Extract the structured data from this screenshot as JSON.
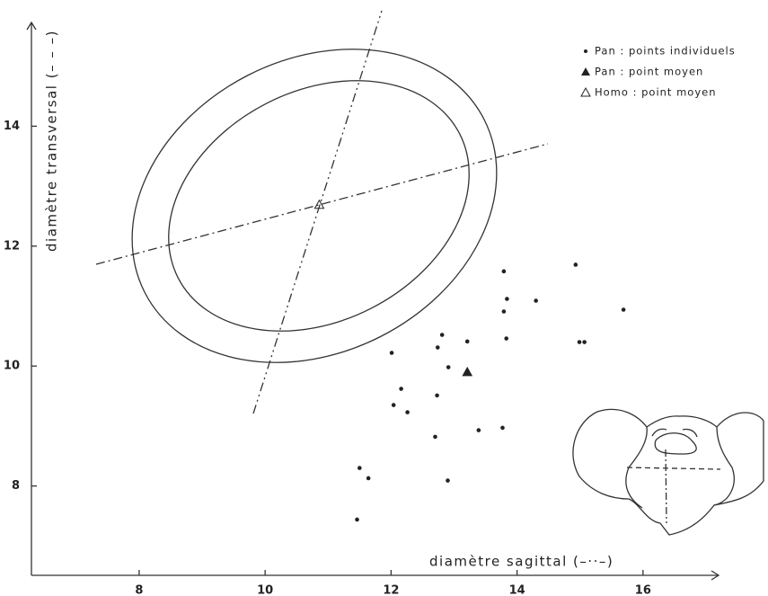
{
  "chart_data": {
    "type": "scatter",
    "x_label": "diamètre sagittal (–··–)",
    "y_label": "diamètre transversal (– – –)",
    "xlim": [
      6.29,
      17.2
    ],
    "ylim": [
      6.51,
      15.73
    ],
    "xticks": [
      8,
      10,
      12,
      14,
      16
    ],
    "yticks": [
      8,
      10,
      12,
      14
    ],
    "series": [
      {
        "name": "Pan : points individuels",
        "color": "#222",
        "marker": "dot",
        "filled": true,
        "x": [
          12.01,
          12.81,
          12.74,
          13.21,
          12.91,
          12.16,
          12.73,
          12.04,
          12.26,
          12.7,
          13.39,
          13.77,
          11.5,
          11.64,
          12.9,
          11.46,
          13.79,
          13.84,
          13.79,
          13.83,
          14.3,
          14.93,
          14.99,
          15.07,
          15.69
        ],
        "y": [
          10.22,
          10.52,
          10.31,
          10.41,
          9.98,
          9.62,
          9.51,
          9.35,
          9.23,
          8.82,
          8.93,
          8.97,
          8.3,
          8.13,
          8.09,
          7.44,
          11.58,
          11.12,
          10.91,
          10.46,
          11.09,
          11.69,
          10.4,
          10.4,
          10.94
        ]
      },
      {
        "name": "Pan : point moyen",
        "color": "#222",
        "marker": "triangle",
        "filled": true,
        "x": [
          13.21
        ],
        "y": [
          9.9
        ]
      },
      {
        "name": "Homo : point moyen",
        "color": "#222",
        "marker": "triangle",
        "filled": false,
        "x": [
          10.86
        ],
        "y": [
          12.69
        ]
      }
    ]
  }
}
